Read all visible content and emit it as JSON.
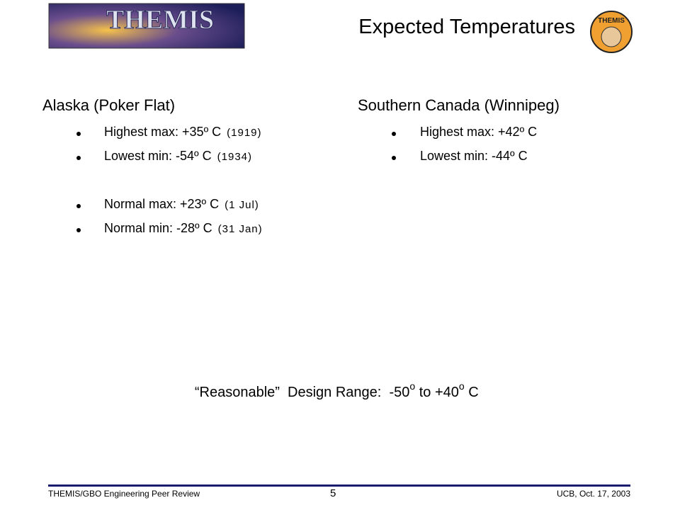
{
  "header": {
    "title": "Expected Temperatures",
    "logo_text": "THEMIS",
    "badge_text": "THEMIS"
  },
  "columns": [
    {
      "heading": "Alaska (Poker Flat)",
      "groups": [
        [
          {
            "text": "Highest max: +35º C",
            "note": "(1919)"
          },
          {
            "text": "Lowest min: -54º C",
            "note": "(1934)"
          }
        ],
        [
          {
            "text": "Normal max: +23º C",
            "note": "(1 Jul)"
          },
          {
            "text": "Normal min: -28º C",
            "note": "(31 Jan)"
          }
        ]
      ]
    },
    {
      "heading": "Southern Canada (Winnipeg)",
      "groups": [
        [
          {
            "text": "Highest max: +42º C"
          },
          {
            "text": "Lowest min: -44º C"
          }
        ]
      ]
    }
  ],
  "design_range": {
    "parts": [
      "“Reasonable”  Design Range:  -50",
      "o",
      " to +40",
      "o",
      " C"
    ]
  },
  "footer": {
    "left": "THEMIS/GBO Engineering Peer Review",
    "page": "5",
    "right": "UCB, Oct. 17, 2003"
  }
}
